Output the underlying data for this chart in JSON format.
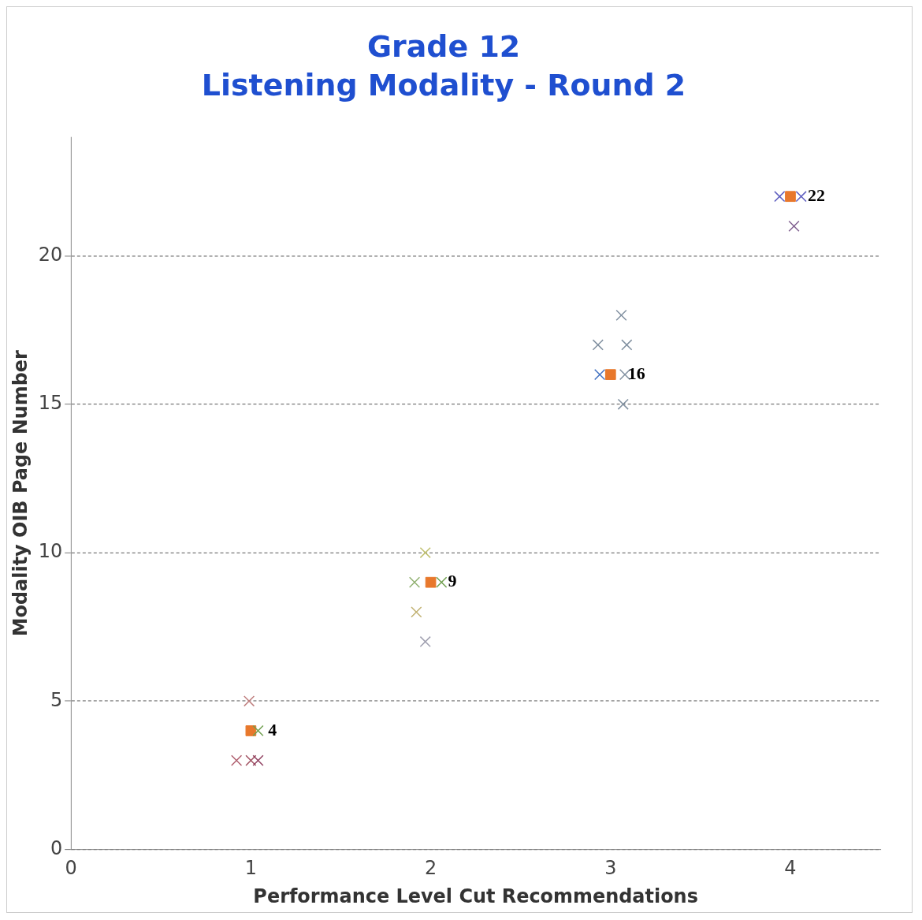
{
  "chart_data": {
    "type": "scatter",
    "title": "Grade 12",
    "subtitle": "Listening Modality - Round 2",
    "xlabel": "Performance Level Cut Recommendations",
    "ylabel": "Modality OIB Page Number",
    "xlim": [
      0,
      4.5
    ],
    "xticks": [
      0,
      1,
      2,
      3,
      4
    ],
    "ylim": [
      0,
      24
    ],
    "yticks": [
      0,
      5,
      10,
      15,
      20
    ],
    "grid": "y",
    "line_style": "dashed",
    "legend": false,
    "series": [
      {
        "marker": "cross",
        "x": [
          0.99,
          0.92,
          1.0,
          1.04,
          1.04,
          1.97,
          1.91,
          2.06,
          1.92,
          1.97,
          3.06,
          2.93,
          3.09,
          2.94,
          3.08,
          3.07,
          3.94,
          4.06,
          4.02
        ],
        "values": [
          5,
          3,
          3,
          3,
          4,
          10,
          9,
          9,
          8,
          7,
          18,
          17,
          17,
          16,
          16,
          15,
          22,
          22,
          21
        ],
        "colors": [
          "#c08080",
          "#b06070",
          "#a05060",
          "#904060",
          "#70a050",
          "#c0c070",
          "#90b070",
          "#70a050",
          "#c0b070",
          "#a0a0b0",
          "#8090a0",
          "#8090a0",
          "#8090a0",
          "#4070c0",
          "#8090a0",
          "#8090a0",
          "#6060c0",
          "#6060c0",
          "#806090"
        ]
      },
      {
        "marker": "square",
        "color": "#e8782c",
        "x": [
          1,
          2,
          3,
          4
        ],
        "values": [
          4,
          9,
          16,
          22
        ],
        "value_labels": [
          "4",
          "9",
          "16",
          "22"
        ]
      }
    ]
  }
}
